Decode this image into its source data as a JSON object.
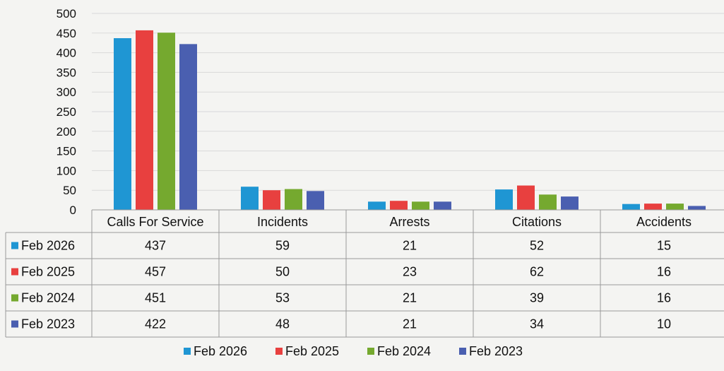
{
  "chart_data": {
    "type": "bar",
    "title": "",
    "xlabel": "",
    "ylabel": "",
    "ylim": [
      0,
      500
    ],
    "yticks": [
      0,
      50,
      100,
      150,
      200,
      250,
      300,
      350,
      400,
      450,
      500
    ],
    "grid": true,
    "legend_position": "bottom",
    "data_table": true,
    "categories": [
      "Calls For Service",
      "Incidents",
      "Arrests",
      "Citations",
      "Accidents"
    ],
    "series": [
      {
        "name": "Feb 2026",
        "color": "#1f96d3",
        "values": [
          437,
          59,
          21,
          52,
          15
        ]
      },
      {
        "name": "Feb 2025",
        "color": "#e8403f",
        "values": [
          457,
          50,
          23,
          62,
          16
        ]
      },
      {
        "name": "Feb 2024",
        "color": "#75a92f",
        "values": [
          451,
          53,
          21,
          39,
          16
        ]
      },
      {
        "name": "Feb 2023",
        "color": "#4a5fb0",
        "values": [
          422,
          48,
          21,
          34,
          10
        ]
      }
    ]
  }
}
